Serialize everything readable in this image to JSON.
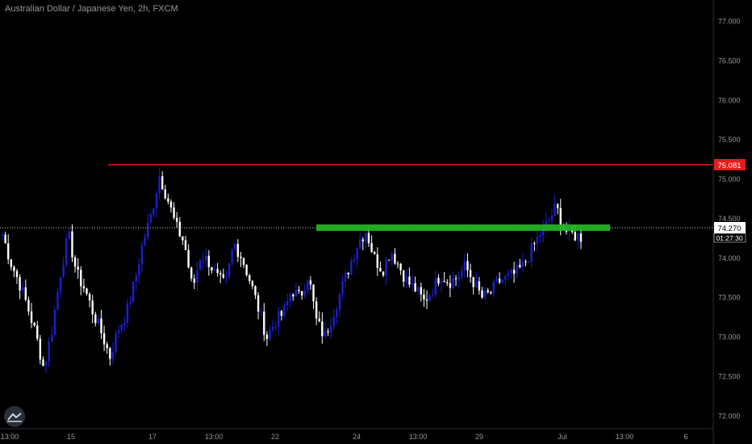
{
  "header": {
    "title": "Australian Dollar / Japanese Yen, 2h, FXCM"
  },
  "colors": {
    "background": "#000000",
    "up_candle": "#1e1ed2",
    "down_candle": "#ffffff",
    "resistance": "#e51c1c",
    "support_zone": "#23b023",
    "axis_text": "#9598a1"
  },
  "chart_data": {
    "type": "candlestick",
    "title": "Australian Dollar / Japanese Yen, 2h, FXCM",
    "ylim": [
      71.85,
      77.22
    ],
    "y_ticks": [
      "77.000",
      "76.500",
      "76.000",
      "75.500",
      "75.000",
      "74.500",
      "74.000",
      "73.500",
      "73.000",
      "72.500",
      "72.000"
    ],
    "x_ticks": [
      "13:00",
      "15",
      "17",
      "13:00",
      "22",
      "24",
      "13:00",
      "29",
      "Jul",
      "13:00",
      "6"
    ],
    "last_price": "74.270",
    "countdown": "01:27:30",
    "resistance_level": "75.081",
    "support_zone": [
      74.22,
      74.3
    ],
    "grid": false,
    "closes": [
      74.3,
      73.95,
      73.7,
      73.4,
      73.05,
      72.6,
      73.1,
      73.8,
      74.3,
      73.8,
      73.6,
      73.3,
      73.05,
      72.75,
      73.1,
      73.3,
      73.7,
      74.2,
      74.55,
      75.05,
      74.75,
      74.4,
      74.2,
      73.6,
      74.05,
      73.95,
      73.75,
      73.65,
      74.2,
      74.0,
      73.7,
      73.35,
      73.0,
      73.2,
      73.3,
      73.6,
      73.5,
      73.8,
      73.2,
      73.0,
      73.3,
      73.6,
      73.9,
      74.2,
      74.35,
      74.0,
      73.85,
      74.1,
      73.9,
      73.7,
      73.6,
      73.45,
      73.6,
      73.8,
      73.7,
      73.75,
      73.9,
      73.7,
      73.5,
      73.55,
      73.7,
      73.75,
      73.8,
      73.9,
      74.1,
      74.3,
      74.45,
      74.65,
      74.35,
      74.3,
      74.27
    ]
  }
}
